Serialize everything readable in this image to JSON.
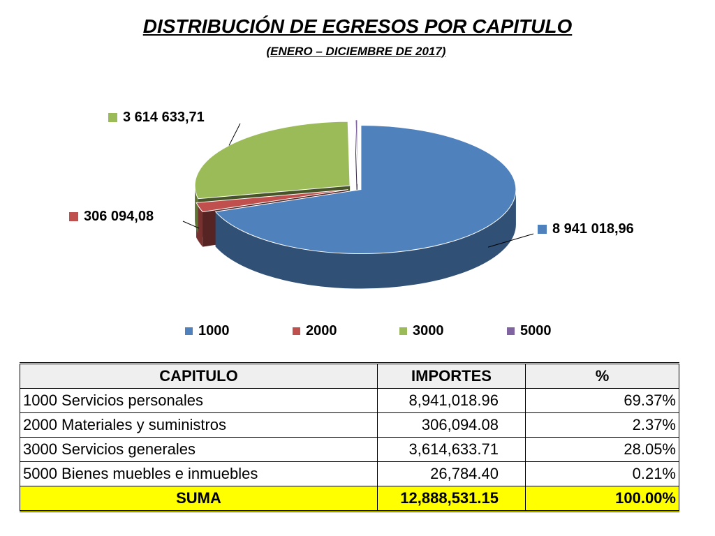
{
  "header": {
    "title": "DISTRIBUCIÓN DE EGRESOS POR CAPITULO",
    "subtitle": "(ENERO – DICIEMBRE DE 2017)"
  },
  "chart_data": {
    "type": "pie",
    "categories": [
      "1000",
      "2000",
      "3000",
      "5000"
    ],
    "values": [
      8941018.96,
      306094.08,
      3614633.71,
      26784.4
    ],
    "data_labels": [
      "8 941 018,96",
      "306 094,08",
      "3 614 633,71",
      ""
    ],
    "colors": [
      "#4f81bd",
      "#c0504d",
      "#9bbb59",
      "#8064a2"
    ],
    "legend": [
      "1000",
      "2000",
      "3000",
      "5000"
    ],
    "legend_position": "bottom",
    "style": "3d-exploded"
  },
  "table": {
    "headers": [
      "CAPITULO",
      "IMPORTES",
      "%"
    ],
    "rows": [
      {
        "capitulo": "1000 Servicios personales",
        "importe": "8,941,018.96",
        "pct": "69.37%"
      },
      {
        "capitulo": "2000 Materiales y suministros",
        "importe": "306,094.08",
        "pct": "2.37%"
      },
      {
        "capitulo": "3000 Servicios generales",
        "importe": "3,614,633.71",
        "pct": "28.05%"
      },
      {
        "capitulo": "5000 Bienes muebles e inmuebles",
        "importe": "26,784.40",
        "pct": "0.21%"
      }
    ],
    "total": {
      "label": "SUMA",
      "importe": "12,888,531.15",
      "pct": "100.00%"
    },
    "total_color": "#ffff00"
  }
}
